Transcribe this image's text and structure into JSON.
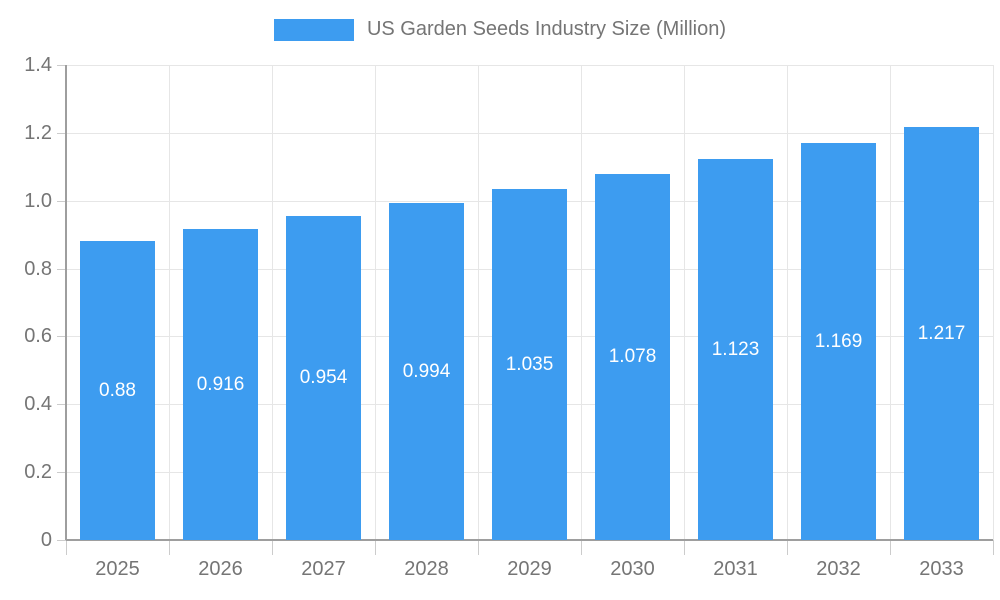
{
  "legend": {
    "label": "US Garden Seeds Industry Size (Million)"
  },
  "chart_data": {
    "type": "bar",
    "title": "US Garden Seeds Industry Size (Million)",
    "categories": [
      "2025",
      "2026",
      "2027",
      "2028",
      "2029",
      "2030",
      "2031",
      "2032",
      "2033"
    ],
    "values": [
      0.88,
      0.916,
      0.954,
      0.994,
      1.035,
      1.078,
      1.123,
      1.169,
      1.217
    ],
    "bar_labels": [
      "0.88",
      "0.916",
      "0.954",
      "0.994",
      "1.035",
      "1.078",
      "1.123",
      "1.169",
      "1.217"
    ],
    "xlabel": "",
    "ylabel": "",
    "ylim": [
      0,
      1.4
    ],
    "ytick_step": 0.2,
    "ytick_labels": [
      "0",
      "0.2",
      "0.4",
      "0.6",
      "0.8",
      "1.0",
      "1.2",
      "1.4"
    ],
    "grid": true,
    "legend_position": "top",
    "colors": {
      "bar": "#3D9CF0",
      "gridline": "#e6e6e6",
      "axis_line": "#9e9e9e",
      "tick": "#cccccc",
      "axis_text": "#757575",
      "bar_label_text": "#ffffff"
    }
  }
}
